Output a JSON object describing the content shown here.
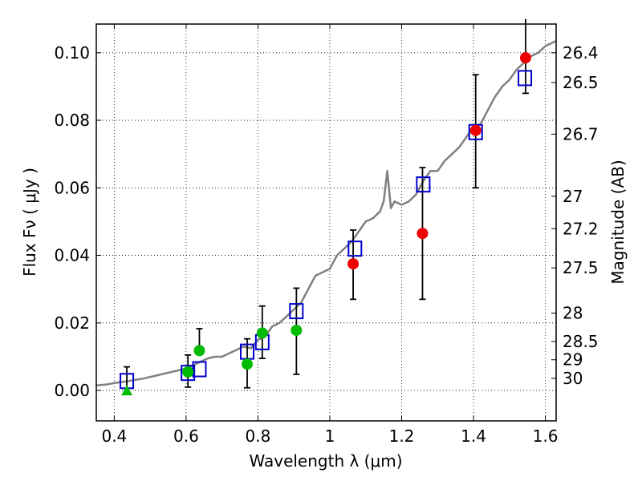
{
  "chart_data": {
    "type": "scatter",
    "xlabel": "Wavelength  λ (μm)",
    "ylabel": "Flux  Fν  ( μJy )",
    "y2label": "Magnitude (AB)",
    "xlim": [
      0.35,
      1.63
    ],
    "ylim": [
      -0.009,
      0.1085
    ],
    "x_ticks": [
      0.4,
      0.6,
      0.8,
      1.0,
      1.2,
      1.4,
      1.6
    ],
    "x_tick_labels": [
      "0.4",
      "0.6",
      "0.8",
      "1",
      "1.2",
      "1.4",
      "1.6"
    ],
    "y_ticks": [
      0.0,
      0.02,
      0.04,
      0.06,
      0.08,
      0.1
    ],
    "y_tick_labels": [
      "0.00",
      "0.02",
      "0.04",
      "0.06",
      "0.08",
      "0.10"
    ],
    "magnitude_ticks": [
      {
        "label": "26.4",
        "flux": 0.1
      },
      {
        "label": "26.5",
        "flux": 0.0912
      },
      {
        "label": "26.7",
        "flux": 0.0759
      },
      {
        "label": "27",
        "flux": 0.0575
      },
      {
        "label": "27.2",
        "flux": 0.0479
      },
      {
        "label": "27.5",
        "flux": 0.0363
      },
      {
        "label": "28",
        "flux": 0.0229
      },
      {
        "label": "28.5",
        "flux": 0.0145
      },
      {
        "label": "29",
        "flux": 0.0091
      },
      {
        "label": "30",
        "flux": 0.0036
      }
    ],
    "grid": true,
    "colors": {
      "model": "#808080",
      "model_photometry": "#0000cc",
      "green_points": "#00bb00",
      "red_points": "#ee0000",
      "error_bars": "#000000"
    },
    "model_spectrum": {
      "x": [
        0.35,
        0.38,
        0.4,
        0.42,
        0.44,
        0.46,
        0.48,
        0.5,
        0.52,
        0.54,
        0.56,
        0.58,
        0.6,
        0.62,
        0.64,
        0.66,
        0.68,
        0.7,
        0.72,
        0.74,
        0.76,
        0.78,
        0.8,
        0.82,
        0.84,
        0.86,
        0.88,
        0.9,
        0.92,
        0.94,
        0.96,
        0.98,
        1.0,
        1.02,
        1.04,
        1.06,
        1.08,
        1.1,
        1.12,
        1.14,
        1.15,
        1.16,
        1.17,
        1.18,
        1.2,
        1.22,
        1.24,
        1.26,
        1.28,
        1.3,
        1.32,
        1.34,
        1.36,
        1.38,
        1.4,
        1.42,
        1.44,
        1.46,
        1.48,
        1.5,
        1.52,
        1.54,
        1.56,
        1.58,
        1.6,
        1.63
      ],
      "y": [
        0.0015,
        0.0018,
        0.0022,
        0.0025,
        0.0028,
        0.0032,
        0.0035,
        0.004,
        0.0045,
        0.005,
        0.0055,
        0.006,
        0.0065,
        0.0075,
        0.0085,
        0.0095,
        0.01,
        0.01,
        0.011,
        0.012,
        0.013,
        0.0125,
        0.015,
        0.016,
        0.019,
        0.02,
        0.022,
        0.024,
        0.026,
        0.03,
        0.034,
        0.035,
        0.036,
        0.04,
        0.042,
        0.044,
        0.047,
        0.05,
        0.051,
        0.053,
        0.056,
        0.065,
        0.054,
        0.056,
        0.055,
        0.056,
        0.058,
        0.062,
        0.065,
        0.065,
        0.068,
        0.07,
        0.072,
        0.075,
        0.078,
        0.079,
        0.083,
        0.087,
        0.09,
        0.092,
        0.095,
        0.097,
        0.099,
        0.1,
        0.102,
        0.1035
      ]
    },
    "series": [
      {
        "marker": "square",
        "x": [
          0.435,
          0.605,
          0.637,
          0.77,
          0.812,
          0.907,
          1.07,
          1.26,
          1.406,
          1.543
        ],
        "y": [
          0.0028,
          0.0052,
          0.0063,
          0.0115,
          0.0143,
          0.0235,
          0.042,
          0.061,
          0.0765,
          0.0925
        ]
      },
      {
        "marker": "circle",
        "x": [
          0.605,
          0.637,
          0.77,
          0.812,
          0.907
        ],
        "y": [
          0.0055,
          0.0118,
          0.0078,
          0.017,
          0.0178
        ],
        "err_low": [
          0.0045,
          null,
          0.007,
          0.0075,
          0.013
        ],
        "err_high": [
          0.005,
          0.0065,
          0.0075,
          0.008,
          0.0125
        ]
      },
      {
        "marker": "triangle",
        "x": [
          0.435
        ],
        "y": [
          0.0
        ],
        "err_high": [
          0.007
        ]
      },
      {
        "marker": "circle",
        "x": [
          1.065,
          1.258,
          1.406,
          1.545
        ],
        "y": [
          0.0375,
          0.0465,
          0.077,
          0.0985
        ],
        "err_low": [
          0.0105,
          0.0195,
          0.017,
          0.0105
        ],
        "err_high": [
          0.01,
          0.0195,
          0.0165,
          0.0115
        ]
      }
    ]
  }
}
